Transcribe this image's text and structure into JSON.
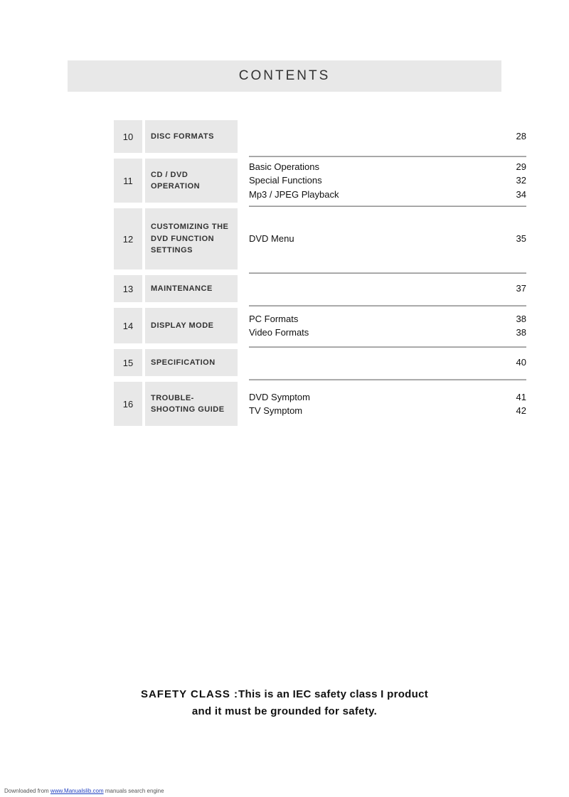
{
  "header": {
    "title": "CONTENTS"
  },
  "sections": [
    {
      "num": "10",
      "title": "DISC FORMATS",
      "subs": [
        {
          "label": "",
          "page": "28"
        }
      ],
      "num_h": 46
    },
    {
      "num": "11",
      "title": "CD / DVD OPERATION",
      "subs": [
        {
          "label": "Basic Operations",
          "page": "29"
        },
        {
          "label": "Special Functions",
          "page": "32"
        },
        {
          "label": "Mp3 / JPEG Playback",
          "page": "34"
        }
      ],
      "num_h": 62
    },
    {
      "num": "12",
      "title": "CUSTOMIZING THE DVD FUNCTION SETTINGS",
      "subs": [
        {
          "label": "DVD  Menu",
          "page": "35"
        }
      ],
      "num_h": 86
    },
    {
      "num": "13",
      "title": "MAINTENANCE",
      "subs": [
        {
          "label": "",
          "page": "37"
        }
      ],
      "num_h": 38
    },
    {
      "num": "14",
      "title": "DISPLAY MODE",
      "subs": [
        {
          "label": "PC Formats",
          "page": "38"
        },
        {
          "label": "Video Formats",
          "page": "38"
        }
      ],
      "num_h": 50
    },
    {
      "num": "15",
      "title": "SPECIFICATION",
      "subs": [
        {
          "label": "",
          "page": "40"
        }
      ],
      "num_h": 38
    },
    {
      "num": "16",
      "title": "TROUBLE-\nSHOOTING GUIDE",
      "subs": [
        {
          "label": "DVD Symptom",
          "page": "41"
        },
        {
          "label": "TV Symptom",
          "page": "42"
        }
      ],
      "num_h": 62,
      "nodividers": true
    }
  ],
  "safety": {
    "label": "SAFETY   CLASS :",
    "line1": "This is an IEC safety class I product",
    "line2": "and it must be grounded for safety."
  },
  "footer": {
    "prefix": "Downloaded from ",
    "link_text": "www.Manualslib.com",
    "suffix": " manuals search engine"
  }
}
